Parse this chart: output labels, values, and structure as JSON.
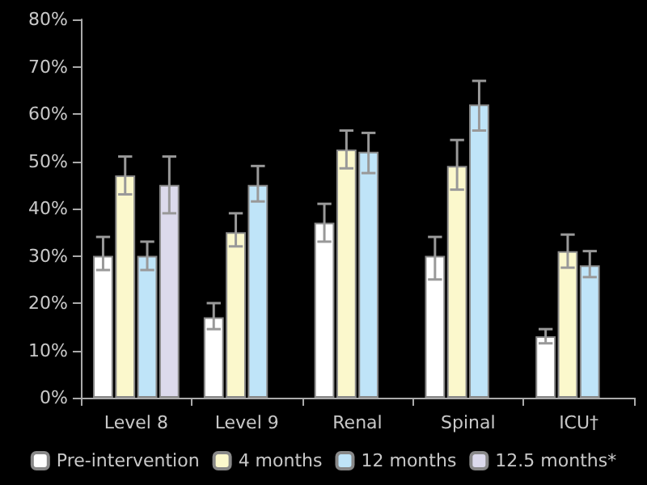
{
  "chart_data": {
    "type": "bar",
    "categories": [
      "Level 8",
      "Level 9",
      "Renal",
      "Spinal",
      "ICU†"
    ],
    "series": [
      {
        "name": "Pre-intervention",
        "color": "#ffffff",
        "values": [
          30,
          17,
          37,
          30,
          13
        ],
        "errors": [
          [
            27,
            34
          ],
          [
            14.5,
            20
          ],
          [
            33,
            41
          ],
          [
            25,
            34
          ],
          [
            11.5,
            14.5
          ]
        ]
      },
      {
        "name": "4 months",
        "color": "#fbf8cc",
        "values": [
          47,
          35,
          52.5,
          49,
          31
        ],
        "errors": [
          [
            43,
            51
          ],
          [
            32,
            39
          ],
          [
            48.5,
            56.5
          ],
          [
            44,
            54.5
          ],
          [
            27.5,
            34.5
          ]
        ]
      },
      {
        "name": "12 months",
        "color": "#bfe4f8",
        "values": [
          30,
          45,
          52,
          62,
          28
        ],
        "errors": [
          [
            27,
            33
          ],
          [
            41.5,
            49
          ],
          [
            47.5,
            56
          ],
          [
            56.5,
            67
          ],
          [
            25.5,
            31
          ]
        ]
      },
      {
        "name": "12.5 months*",
        "color": "#dcdaec",
        "values": [
          45,
          null,
          null,
          null,
          null
        ],
        "errors": [
          [
            39,
            51
          ],
          null,
          null,
          null,
          null
        ]
      }
    ],
    "ylim": [
      0,
      80
    ],
    "yticks": [
      {
        "value": 0,
        "label": "0%"
      },
      {
        "value": 10,
        "label": "10%"
      },
      {
        "value": 20,
        "label": "20%"
      },
      {
        "value": 30,
        "label": "30%"
      },
      {
        "value": 40,
        "label": "40%"
      },
      {
        "value": 50,
        "label": "50%"
      },
      {
        "value": 60,
        "label": "60%"
      },
      {
        "value": 70,
        "label": "70%"
      },
      {
        "value": 80,
        "label": "80%"
      }
    ],
    "grid": false,
    "legend": "bottom"
  }
}
